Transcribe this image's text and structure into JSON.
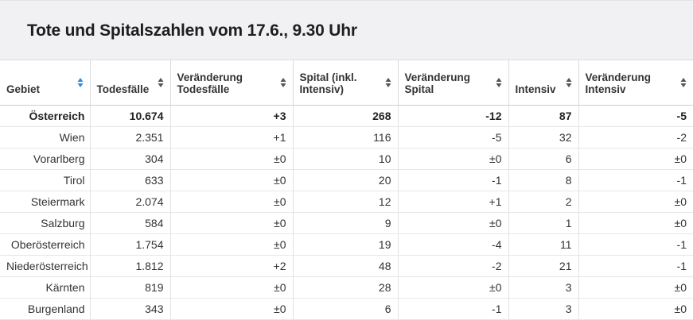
{
  "title": "Tote und Spitalszahlen vom 17.6., 9.30 Uhr",
  "headers": [
    {
      "label": "Gebiet",
      "active": true
    },
    {
      "label": "Todesfälle",
      "active": false
    },
    {
      "label": "Veränderung Todesfälle",
      "active": false
    },
    {
      "label": "Spital (inkl. Intensiv)",
      "active": false
    },
    {
      "label": "Veränderung Spital",
      "active": false
    },
    {
      "label": "Intensiv",
      "active": false
    },
    {
      "label": "Veränderung Intensiv",
      "active": false
    }
  ],
  "rows": [
    [
      "Österreich",
      "10.674",
      "+3",
      "268",
      "-12",
      "87",
      "-5"
    ],
    [
      "Wien",
      "2.351",
      "+1",
      "116",
      "-5",
      "32",
      "-2"
    ],
    [
      "Vorarlberg",
      "304",
      "±0",
      "10",
      "±0",
      "6",
      "±0"
    ],
    [
      "Tirol",
      "633",
      "±0",
      "20",
      "-1",
      "8",
      "-1"
    ],
    [
      "Steiermark",
      "2.074",
      "±0",
      "12",
      "+1",
      "2",
      "±0"
    ],
    [
      "Salzburg",
      "584",
      "±0",
      "9",
      "±0",
      "1",
      "±0"
    ],
    [
      "Oberösterreich",
      "1.754",
      "±0",
      "19",
      "-4",
      "11",
      "-1"
    ],
    [
      "Niederösterreich",
      "1.812",
      "+2",
      "48",
      "-2",
      "21",
      "-1"
    ],
    [
      "Kärnten",
      "819",
      "±0",
      "28",
      "±0",
      "3",
      "±0"
    ],
    [
      "Burgenland",
      "343",
      "±0",
      "6",
      "-1",
      "3",
      "±0"
    ]
  ],
  "colors": {
    "sort_active": "#2f8ce0",
    "sort_inactive": "#555555",
    "title_bg": "#f1f1f3"
  }
}
